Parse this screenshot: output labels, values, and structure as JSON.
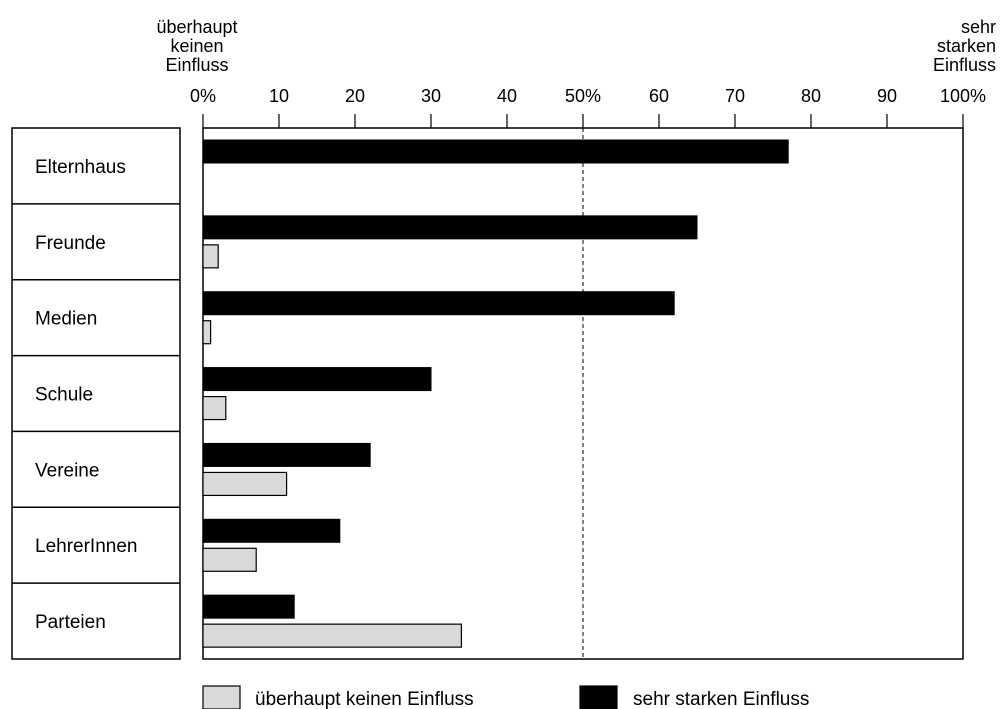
{
  "chart_data": {
    "type": "bar",
    "orientation": "horizontal",
    "categories": [
      "Elternhaus",
      "Freunde",
      "Medien",
      "Schule",
      "Vereine",
      "LehrerInnen",
      "Parteien"
    ],
    "series": [
      {
        "name": "sehr starken Einfluss",
        "color": "#000000",
        "values": [
          77,
          65,
          62,
          30,
          22,
          18,
          12
        ]
      },
      {
        "name": "überhaupt keinen Einfluss",
        "color": "#d9d9d9",
        "values": [
          0,
          2,
          1,
          3,
          11,
          7,
          34
        ]
      }
    ],
    "x_ticks": [
      {
        "value": 0,
        "label": "0%"
      },
      {
        "value": 10,
        "label": "10"
      },
      {
        "value": 20,
        "label": "20"
      },
      {
        "value": 30,
        "label": "30"
      },
      {
        "value": 40,
        "label": "40"
      },
      {
        "value": 50,
        "label": "50%"
      },
      {
        "value": 60,
        "label": "60"
      },
      {
        "value": 70,
        "label": "70"
      },
      {
        "value": 80,
        "label": "80"
      },
      {
        "value": 90,
        "label": "90"
      },
      {
        "value": 100,
        "label": "100%"
      }
    ],
    "xlim": [
      0,
      100
    ],
    "reference_line": {
      "value": 50,
      "style": "dashed"
    },
    "axis_title_left": [
      "überhaupt",
      "keinen",
      "Einfluss"
    ],
    "axis_title_right": [
      "sehr",
      "starken",
      "Einfluss"
    ],
    "legend": {
      "placement": "bottom",
      "items": [
        {
          "label": "überhaupt keinen Einfluss",
          "color": "#d9d9d9"
        },
        {
          "label": "sehr starken Einfluss",
          "color": "#000000"
        }
      ]
    },
    "grid": false
  }
}
